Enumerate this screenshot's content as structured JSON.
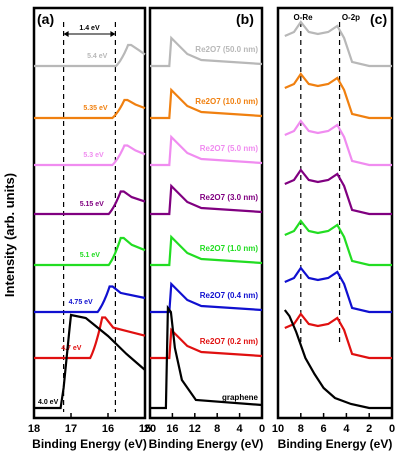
{
  "ylabel": "Intensity (arb. units)",
  "colors": {
    "gray": "#b8b8b8",
    "orange": "#f08010",
    "pink": "#f08cf0",
    "purple": "#800080",
    "green": "#22dd22",
    "blue": "#1010d0",
    "red": "#e01010",
    "black": "#000000"
  },
  "chart_data": [
    {
      "type": "line",
      "panel_label": "(a)",
      "xlabel": "Binding Energy (eV)",
      "xlim": [
        18,
        15
      ],
      "x_ticks": [
        "18",
        "17",
        "16",
        "15"
      ],
      "reversed_x": true,
      "bracket_label": "1.4 eV",
      "vlines": [
        17.2,
        15.8
      ],
      "traces": [
        {
          "label": "5.4 eV",
          "color": "gray",
          "edge": 15.7,
          "offset": 7,
          "scale": 0.7,
          "shape": "step"
        },
        {
          "label": "5.35 eV",
          "color": "orange",
          "edge": 15.8,
          "offset": 6,
          "scale": 0.6,
          "shape": "step"
        },
        {
          "label": "5.3 eV",
          "color": "pink",
          "edge": 15.8,
          "offset": 5,
          "scale": 0.65,
          "shape": "step"
        },
        {
          "label": "5.15 eV",
          "color": "purple",
          "edge": 15.9,
          "offset": 4,
          "scale": 0.75,
          "shape": "step"
        },
        {
          "label": "5.1 eV",
          "color": "green",
          "edge": 15.9,
          "offset": 3,
          "scale": 0.9,
          "shape": "step"
        },
        {
          "label": "4.75 eV",
          "color": "blue",
          "edge": 16.2,
          "offset": 2,
          "scale": 0.85,
          "shape": "step"
        },
        {
          "label": "4.7 eV",
          "color": "red",
          "edge": 16.4,
          "offset": 1,
          "scale": 1.35,
          "shape": "step"
        },
        {
          "label": "4.0 eV",
          "color": "black",
          "edge": 17.2,
          "offset": 0,
          "scale": 1.95,
          "shape": "peak"
        }
      ]
    },
    {
      "type": "line",
      "panel_label": "(b)",
      "xlabel": "Binding Energy (eV)",
      "xlim": [
        20,
        0
      ],
      "x_ticks": [
        "20",
        "16",
        "12",
        "8",
        "4",
        "0"
      ],
      "reversed_x": true,
      "traces": [
        {
          "label": "Re2O7 (50.0 nm)",
          "color": "gray",
          "offset": 7
        },
        {
          "label": "Re2O7 (10.0 nm)",
          "color": "orange",
          "offset": 6
        },
        {
          "label": "Re2O7 (5.0 nm)",
          "color": "pink",
          "offset": 5
        },
        {
          "label": "Re2O7 (3.0 nm)",
          "color": "purple",
          "offset": 4
        },
        {
          "label": "Re2O7 (1.0 nm)",
          "color": "green",
          "offset": 3
        },
        {
          "label": "Re2O7 (0.4 nm)",
          "color": "blue",
          "offset": 2
        },
        {
          "label": "Re2O7 (0.2 nm)",
          "color": "red",
          "offset": 1
        },
        {
          "label": "graphene",
          "color": "black",
          "offset": 0
        }
      ]
    },
    {
      "type": "line",
      "panel_label": "(c)",
      "xlabel": "Binding Energy (eV)",
      "xlim": [
        10,
        0
      ],
      "x_ticks": [
        "10",
        "8",
        "6",
        "4",
        "2",
        "0"
      ],
      "reversed_x": true,
      "annotations": [
        "O-Re",
        "O-2p"
      ],
      "vlines": [
        8.0,
        4.6
      ],
      "traces": [
        {
          "color": "gray",
          "offset": 7
        },
        {
          "color": "orange",
          "offset": 6
        },
        {
          "color": "pink",
          "offset": 5
        },
        {
          "color": "purple",
          "offset": 4
        },
        {
          "color": "green",
          "offset": 3
        },
        {
          "color": "blue",
          "offset": 2
        },
        {
          "color": "red",
          "offset": 1
        },
        {
          "color": "black",
          "offset": 0
        }
      ]
    }
  ]
}
